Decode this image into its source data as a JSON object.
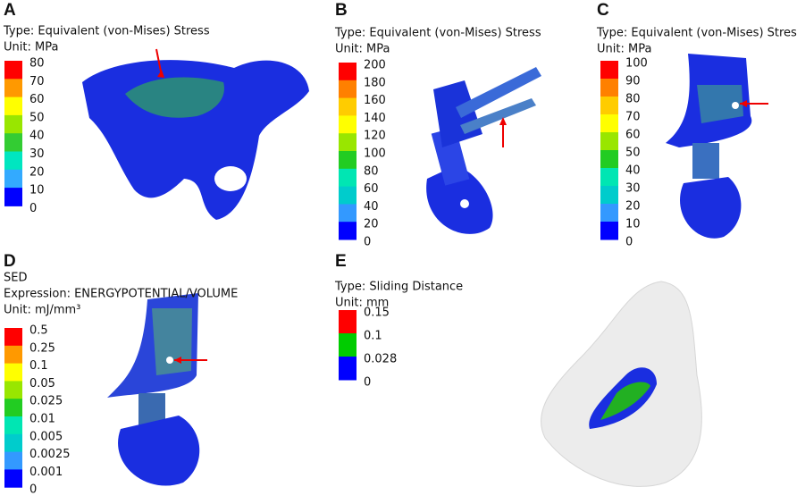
{
  "panels": [
    {
      "letter": "A",
      "lines": [
        "Type: Equivalent (von-Mises) Stress",
        "Unit: MPa"
      ],
      "legend": {
        "labels": [
          "80",
          "70",
          "60",
          "50",
          "40",
          "30",
          "20",
          "10",
          "0"
        ],
        "colors": [
          "#ff0000",
          "#ff9900",
          "#ffff00",
          "#99e600",
          "#33cc33",
          "#00e6c0",
          "#33aaff",
          "#0000ff"
        ]
      }
    },
    {
      "letter": "B",
      "lines": [
        "Type: Equivalent (von-Mises) Stress",
        "Unit: MPa"
      ],
      "legend": {
        "labels": [
          "200",
          "180",
          "160",
          "140",
          "120",
          "100",
          "80",
          "60",
          "40",
          "20",
          "0"
        ],
        "colors": [
          "#ff0000",
          "#ff8000",
          "#ffcc00",
          "#ffff00",
          "#99e600",
          "#22cc22",
          "#00e6b3",
          "#00cccc",
          "#3399ff",
          "#0000ff"
        ]
      }
    },
    {
      "letter": "C",
      "lines": [
        "Type: Equivalent (von-Mises) Stress",
        "Unit: MPa"
      ],
      "legend": {
        "labels": [
          "100",
          "90",
          "80",
          "70",
          "60",
          "50",
          "40",
          "30",
          "20",
          "10",
          "0"
        ],
        "colors": [
          "#ff0000",
          "#ff8000",
          "#ffcc00",
          "#ffff00",
          "#99e600",
          "#22cc22",
          "#00e6b3",
          "#00cccc",
          "#3399ff",
          "#0000ff"
        ]
      }
    },
    {
      "letter": "D",
      "lines": [
        "SED",
        "Expression: ENERGYPOTENTIAL/VOLUME",
        "Unit: mJ/mm³"
      ],
      "legend": {
        "labels": [
          "0.5",
          "0.25",
          "0.1",
          "0.05",
          "0.025",
          "0.01",
          "0.005",
          "0.0025",
          "0.001",
          "0"
        ],
        "colors": [
          "#ff0000",
          "#ff9900",
          "#ffff00",
          "#99e600",
          "#22cc22",
          "#00e6b3",
          "#00cccc",
          "#3399ff",
          "#0000ff"
        ]
      }
    },
    {
      "letter": "E",
      "lines": [
        "Type: Sliding Distance",
        "Unit: mm"
      ],
      "legend": {
        "labels": [
          "0.15",
          "0.1",
          "0.028",
          "0"
        ],
        "colors": [
          "#ff0000",
          "#00cc00",
          "#0000ff"
        ]
      }
    }
  ]
}
